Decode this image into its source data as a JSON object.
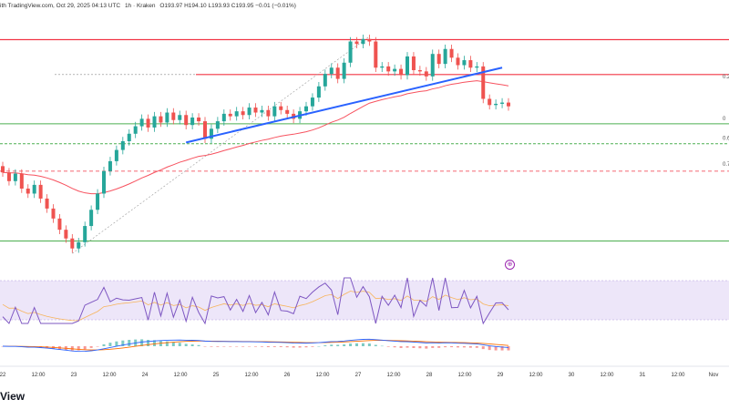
{
  "header": {
    "source": "ith TradingView.com, Oct 29, 2025 04:13 UTC",
    "pair": "1h · Kraken",
    "ohlc": "O193.97 H194.10 L193.93 C193.95 −0.01 (−0.01%)"
  },
  "footer": {
    "logo_text": "View"
  },
  "colors": {
    "up": "#26a69a",
    "down": "#ef5350",
    "bg": "#ffffff",
    "trendline": "#2962ff",
    "resistance": "#f23645",
    "ema": "#f7525f",
    "support": "#4caf50",
    "rsi_line": "#7e57c2",
    "rsi_band": "#e1d5f5",
    "rsi_signal": "#f7b45c",
    "macd_line": "#2962ff",
    "macd_signal": "#ff6d00"
  },
  "chart_data": {
    "type": "candlestick",
    "title": "",
    "x_tick_labels": [
      "22",
      "12:00",
      "23",
      "12:00",
      "24",
      "12:00",
      "25",
      "12:00",
      "26",
      "12:00",
      "27",
      "12:00",
      "28",
      "12:00",
      "29",
      "12:00",
      "30",
      "12:00",
      "31",
      "12:00",
      "Nov"
    ],
    "fib_labels": [
      "0.2",
      "0",
      "0.6",
      "0.7"
    ],
    "candles_close": [
      186.5,
      185.8,
      186.4,
      185.2,
      184.8,
      185.5,
      184.4,
      183.6,
      182.8,
      181.9,
      181.2,
      180.4,
      180.9,
      182.2,
      183.5,
      184.8,
      186.6,
      187.4,
      188.3,
      189.0,
      189.6,
      190.2,
      190.8,
      190.1,
      191.0,
      190.5,
      191.3,
      190.7,
      191.1,
      190.3,
      190.9,
      190.6,
      189.2,
      190.0,
      190.6,
      191.2,
      191.0,
      191.4,
      191.1,
      191.7,
      191.3,
      191.5,
      191.0,
      191.8,
      191.5,
      191.2,
      190.8,
      191.4,
      191.8,
      192.5,
      193.4,
      194.4,
      194.9,
      194.0,
      195.3,
      197.0,
      196.8,
      197.2,
      197.0,
      194.9,
      195.0,
      194.6,
      194.8,
      194.3,
      195.8,
      194.7,
      194.6,
      194.2,
      196.0,
      195.2,
      196.4,
      195.7,
      195.1,
      195.5,
      194.9,
      195.0,
      192.4,
      191.9,
      192.0,
      192.1,
      191.8
    ],
    "candles_open": [
      187.0,
      186.5,
      185.8,
      186.4,
      185.2,
      184.8,
      185.5,
      184.4,
      183.6,
      182.8,
      181.9,
      181.2,
      180.4,
      180.9,
      182.2,
      183.5,
      184.8,
      186.6,
      187.4,
      188.3,
      189.0,
      189.6,
      190.2,
      190.8,
      190.1,
      191.0,
      190.5,
      191.3,
      190.7,
      191.1,
      190.3,
      190.9,
      190.6,
      189.2,
      190.0,
      190.6,
      191.2,
      191.0,
      191.4,
      191.1,
      191.7,
      191.3,
      191.5,
      191.0,
      191.8,
      191.5,
      191.2,
      190.8,
      191.4,
      191.8,
      192.5,
      193.4,
      194.4,
      194.9,
      194.0,
      195.3,
      197.0,
      196.8,
      197.2,
      197.0,
      194.9,
      195.0,
      194.6,
      194.8,
      194.3,
      195.8,
      194.7,
      194.6,
      194.2,
      196.0,
      195.2,
      196.4,
      195.7,
      195.1,
      195.5,
      194.9,
      195.0,
      192.4,
      191.9,
      192.0,
      192.1
    ],
    "ylim": [
      179.5,
      198.5
    ],
    "resistance_level": 197.15,
    "mid_level": 194.35,
    "support_levels": [
      190.4,
      188.8,
      181.0
    ],
    "fib_dashed_level": 186.6
  }
}
